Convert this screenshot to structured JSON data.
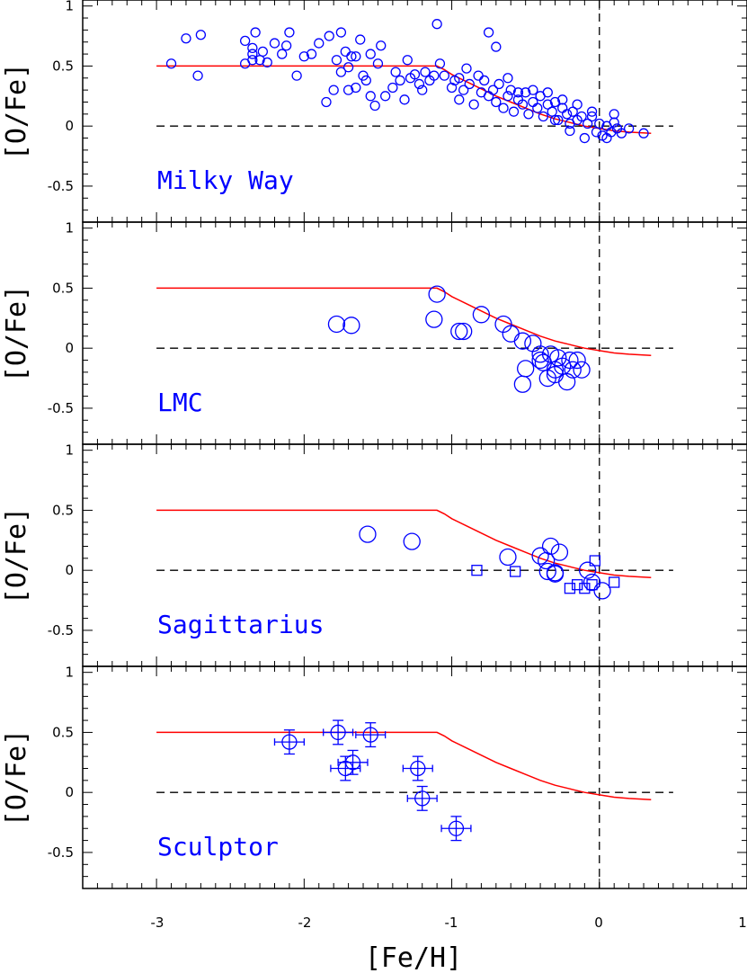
{
  "colors": {
    "model": "#ff0000",
    "points": "#0000ff",
    "labels": "#0000ff",
    "axes": "#000000"
  },
  "chart_data": {
    "type": "scatter",
    "xlabel": "[Fe/H]",
    "ylabel": "[O/Fe]",
    "xlim": [
      -3.5,
      1.0
    ],
    "ylim": [
      -0.8,
      1.05
    ],
    "xticks": [
      "-3",
      "-2",
      "-1",
      "0",
      "1"
    ],
    "yticks": [
      "-0.5",
      "0",
      "0.5",
      "1"
    ],
    "reference_lines": {
      "horizontal_y": 0,
      "vertical_x": 0,
      "style": "dashed"
    },
    "model_curve": {
      "x": [
        -3.0,
        -1.1,
        -1.05,
        -1.0,
        -0.9,
        -0.8,
        -0.7,
        -0.6,
        -0.5,
        -0.4,
        -0.3,
        -0.2,
        -0.1,
        0.0,
        0.1,
        0.2,
        0.35
      ],
      "y": [
        0.5,
        0.5,
        0.47,
        0.43,
        0.37,
        0.31,
        0.25,
        0.2,
        0.15,
        0.1,
        0.06,
        0.03,
        0.0,
        -0.02,
        -0.04,
        -0.05,
        -0.06
      ]
    },
    "panels": [
      {
        "label": "Milky Way",
        "marker": "small-circle",
        "points": [
          [
            -2.9,
            0.52
          ],
          [
            -2.8,
            0.73
          ],
          [
            -2.72,
            0.42
          ],
          [
            -2.7,
            0.76
          ],
          [
            -2.4,
            0.71
          ],
          [
            -2.4,
            0.52
          ],
          [
            -2.35,
            0.55
          ],
          [
            -2.35,
            0.6
          ],
          [
            -2.35,
            0.65
          ],
          [
            -2.33,
            0.78
          ],
          [
            -2.3,
            0.55
          ],
          [
            -2.28,
            0.62
          ],
          [
            -2.25,
            0.53
          ],
          [
            -2.2,
            0.69
          ],
          [
            -2.15,
            0.6
          ],
          [
            -2.12,
            0.67
          ],
          [
            -2.1,
            0.78
          ],
          [
            -2.05,
            0.42
          ],
          [
            -2.0,
            0.58
          ],
          [
            -1.95,
            0.6
          ],
          [
            -1.9,
            0.69
          ],
          [
            -1.85,
            0.2
          ],
          [
            -1.83,
            0.75
          ],
          [
            -1.8,
            0.3
          ],
          [
            -1.78,
            0.55
          ],
          [
            -1.75,
            0.78
          ],
          [
            -1.75,
            0.45
          ],
          [
            -1.72,
            0.62
          ],
          [
            -1.7,
            0.49
          ],
          [
            -1.7,
            0.3
          ],
          [
            -1.68,
            0.58
          ],
          [
            -1.65,
            0.32
          ],
          [
            -1.65,
            0.58
          ],
          [
            -1.62,
            0.72
          ],
          [
            -1.6,
            0.42
          ],
          [
            -1.58,
            0.38
          ],
          [
            -1.55,
            0.6
          ],
          [
            -1.55,
            0.25
          ],
          [
            -1.52,
            0.17
          ],
          [
            -1.5,
            0.52
          ],
          [
            -1.48,
            0.67
          ],
          [
            -1.45,
            0.25
          ],
          [
            -1.4,
            0.32
          ],
          [
            -1.38,
            0.45
          ],
          [
            -1.35,
            0.38
          ],
          [
            -1.32,
            0.22
          ],
          [
            -1.3,
            0.55
          ],
          [
            -1.28,
            0.4
          ],
          [
            -1.25,
            0.43
          ],
          [
            -1.22,
            0.35
          ],
          [
            -1.2,
            0.3
          ],
          [
            -1.18,
            0.45
          ],
          [
            -1.15,
            0.38
          ],
          [
            -1.12,
            0.42
          ],
          [
            -1.1,
            0.85
          ],
          [
            -1.08,
            0.52
          ],
          [
            -1.05,
            0.42
          ],
          [
            -1.0,
            0.32
          ],
          [
            -0.98,
            0.38
          ],
          [
            -0.95,
            0.22
          ],
          [
            -0.92,
            0.3
          ],
          [
            -0.9,
            0.48
          ],
          [
            -0.88,
            0.35
          ],
          [
            -0.85,
            0.18
          ],
          [
            -0.82,
            0.42
          ],
          [
            -0.8,
            0.28
          ],
          [
            -0.78,
            0.38
          ],
          [
            -0.75,
            0.25
          ],
          [
            -0.72,
            0.3
          ],
          [
            -0.7,
            0.2
          ],
          [
            -0.68,
            0.35
          ],
          [
            -0.65,
            0.15
          ],
          [
            -0.62,
            0.25
          ],
          [
            -0.6,
            0.3
          ],
          [
            -0.58,
            0.12
          ],
          [
            -0.55,
            0.22
          ],
          [
            -0.52,
            0.18
          ],
          [
            -0.5,
            0.28
          ],
          [
            -0.48,
            0.1
          ],
          [
            -0.45,
            0.2
          ],
          [
            -0.42,
            0.15
          ],
          [
            -0.4,
            0.25
          ],
          [
            -0.38,
            0.08
          ],
          [
            -0.35,
            0.18
          ],
          [
            -0.32,
            0.12
          ],
          [
            -0.3,
            0.2
          ],
          [
            -0.28,
            0.05
          ],
          [
            -0.25,
            0.15
          ],
          [
            -0.22,
            0.1
          ],
          [
            -0.2,
            0.02
          ],
          [
            -0.18,
            0.12
          ],
          [
            -0.15,
            0.05
          ],
          [
            -0.12,
            0.08
          ],
          [
            -0.1,
            -0.1
          ],
          [
            -0.08,
            0.02
          ],
          [
            -0.05,
            0.08
          ],
          [
            -0.02,
            -0.05
          ],
          [
            0.0,
            0.02
          ],
          [
            0.02,
            -0.08
          ],
          [
            0.05,
            0.0
          ],
          [
            0.08,
            -0.05
          ],
          [
            0.1,
            0.03
          ],
          [
            0.12,
            -0.02
          ],
          [
            0.15,
            -0.06
          ],
          [
            0.2,
            -0.02
          ],
          [
            0.3,
            -0.06
          ],
          [
            -0.7,
            0.66
          ],
          [
            -0.75,
            0.78
          ],
          [
            -0.95,
            0.4
          ],
          [
            -0.62,
            0.4
          ],
          [
            -0.55,
            0.28
          ],
          [
            -0.45,
            0.3
          ],
          [
            -0.35,
            0.28
          ],
          [
            -0.25,
            0.22
          ],
          [
            -0.15,
            0.18
          ],
          [
            -0.05,
            0.12
          ],
          [
            0.1,
            0.1
          ],
          [
            -0.3,
            0.05
          ],
          [
            -0.2,
            -0.04
          ],
          [
            0.05,
            -0.1
          ]
        ]
      },
      {
        "label": "LMC",
        "marker": "large-circle",
        "points": [
          [
            -1.78,
            0.2
          ],
          [
            -1.68,
            0.19
          ],
          [
            -1.1,
            0.45
          ],
          [
            -1.12,
            0.24
          ],
          [
            -0.95,
            0.14
          ],
          [
            -0.92,
            0.14
          ],
          [
            -0.8,
            0.28
          ],
          [
            -0.65,
            0.2
          ],
          [
            -0.6,
            0.12
          ],
          [
            -0.52,
            0.06
          ],
          [
            -0.5,
            -0.17
          ],
          [
            -0.52,
            -0.3
          ],
          [
            -0.45,
            0.04
          ],
          [
            -0.4,
            -0.05
          ],
          [
            -0.38,
            -0.12
          ],
          [
            -0.35,
            -0.25
          ],
          [
            -0.33,
            -0.05
          ],
          [
            -0.3,
            -0.18
          ],
          [
            -0.28,
            -0.08
          ],
          [
            -0.25,
            -0.15
          ],
          [
            -0.22,
            -0.28
          ],
          [
            -0.2,
            -0.1
          ],
          [
            -0.18,
            -0.18
          ],
          [
            -0.15,
            -0.1
          ],
          [
            -0.12,
            -0.18
          ],
          [
            -0.3,
            -0.22
          ],
          [
            -0.4,
            -0.1
          ]
        ]
      },
      {
        "label": "Sagittarius",
        "marker": "circle-and-square",
        "points": [
          [
            -1.57,
            0.3
          ],
          [
            -1.27,
            0.24
          ],
          [
            -0.62,
            0.11
          ],
          [
            -0.4,
            0.12
          ],
          [
            -0.36,
            0.08
          ],
          [
            -0.33,
            0.2
          ],
          [
            -0.3,
            -0.02
          ],
          [
            -0.27,
            0.15
          ],
          [
            -0.35,
            -0.01
          ],
          [
            -0.3,
            -0.03
          ],
          [
            -0.08,
            0.0
          ],
          [
            -0.05,
            -0.1
          ],
          [
            0.02,
            -0.17
          ]
        ],
        "squares": [
          [
            -0.83,
            0.0
          ],
          [
            -0.57,
            -0.01
          ],
          [
            -0.2,
            -0.15
          ],
          [
            -0.15,
            -0.12
          ],
          [
            -0.1,
            -0.15
          ],
          [
            -0.05,
            -0.12
          ],
          [
            -0.03,
            0.08
          ],
          [
            0.1,
            -0.1
          ]
        ]
      },
      {
        "label": "Sculptor",
        "marker": "circle-with-errorbars",
        "points": [
          [
            -2.1,
            0.42
          ],
          [
            -1.77,
            0.5
          ],
          [
            -1.55,
            0.48
          ],
          [
            -1.72,
            0.2
          ],
          [
            -1.67,
            0.25
          ],
          [
            -1.23,
            0.2
          ],
          [
            -1.2,
            -0.05
          ],
          [
            -0.97,
            -0.3
          ]
        ],
        "xerr": 0.1,
        "yerr": 0.1
      }
    ]
  }
}
